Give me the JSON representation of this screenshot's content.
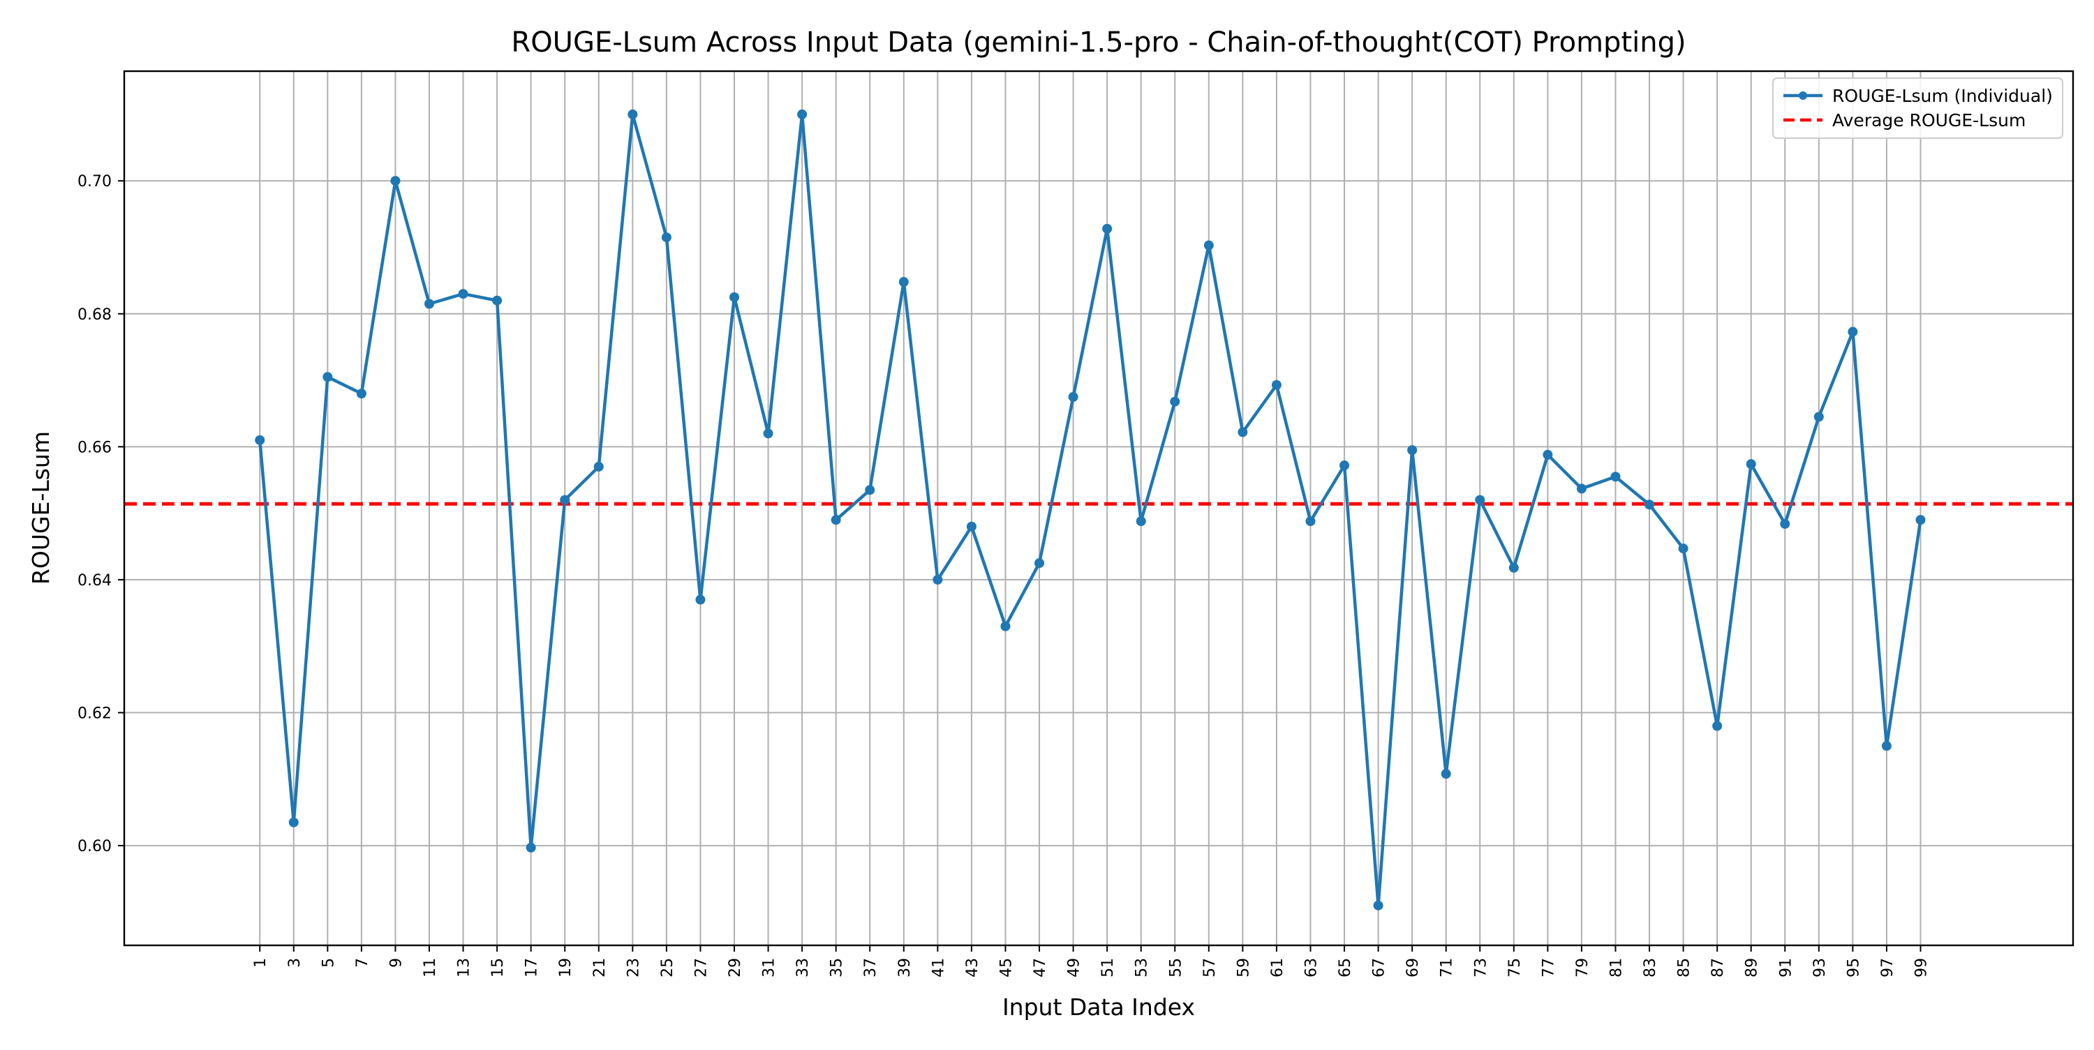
{
  "chart_data": {
    "type": "line",
    "title": "ROUGE-Lsum Across Input Data (gemini-1.5-pro - Chain-of-thought(COT) Prompting)",
    "xlabel": "Input Data Index",
    "ylabel": "ROUGE-Lsum",
    "x": [
      1,
      3,
      5,
      7,
      9,
      11,
      13,
      15,
      17,
      19,
      21,
      23,
      25,
      27,
      29,
      31,
      33,
      35,
      37,
      39,
      41,
      43,
      45,
      47,
      49,
      51,
      53,
      55,
      57,
      59,
      61,
      63,
      65,
      67,
      69,
      71,
      73,
      75,
      77,
      79,
      81,
      83,
      85,
      87,
      89,
      91,
      93,
      95,
      97,
      99
    ],
    "x_tick_labels": [
      "1",
      "3",
      "5",
      "7",
      "9",
      "11",
      "13",
      "15",
      "17",
      "19",
      "21",
      "23",
      "25",
      "27",
      "29",
      "31",
      "33",
      "35",
      "37",
      "39",
      "41",
      "43",
      "45",
      "47",
      "49",
      "51",
      "53",
      "55",
      "57",
      "59",
      "61",
      "63",
      "65",
      "67",
      "69",
      "71",
      "73",
      "75",
      "77",
      "79",
      "81",
      "83",
      "85",
      "87",
      "89",
      "91",
      "93",
      "95",
      "97",
      "99"
    ],
    "xlim": [
      -7,
      108
    ],
    "ylim": [
      0.585,
      0.7165
    ],
    "y_ticks": [
      0.6,
      0.62,
      0.64,
      0.66,
      0.68,
      0.7
    ],
    "y_tick_labels": [
      "0.60",
      "0.62",
      "0.64",
      "0.66",
      "0.68",
      "0.70"
    ],
    "grid": true,
    "legend_position": "top-right",
    "series": [
      {
        "name": "ROUGE-Lsum (Individual)",
        "color": "#1f77b4",
        "style": "line-with-markers",
        "values": [
          0.661,
          0.6035,
          0.6705,
          0.668,
          0.7,
          0.6815,
          0.683,
          0.682,
          0.5997,
          0.652,
          0.657,
          0.71,
          0.6915,
          0.637,
          0.6825,
          0.662,
          0.71,
          0.649,
          0.6535,
          0.6848,
          0.64,
          0.648,
          0.633,
          0.6425,
          0.6675,
          0.6928,
          0.6488,
          0.6668,
          0.6903,
          0.6622,
          0.6693,
          0.6488,
          0.6572,
          0.591,
          0.6595,
          0.6108,
          0.652,
          0.6418,
          0.6588,
          0.6537,
          0.6555,
          0.6513,
          0.6447,
          0.618,
          0.6574,
          0.6484,
          0.6645,
          0.6773,
          0.615,
          0.649
        ]
      },
      {
        "name": "Average ROUGE-Lsum",
        "color": "#ff0000",
        "style": "dashed",
        "value": 0.6514
      }
    ]
  }
}
